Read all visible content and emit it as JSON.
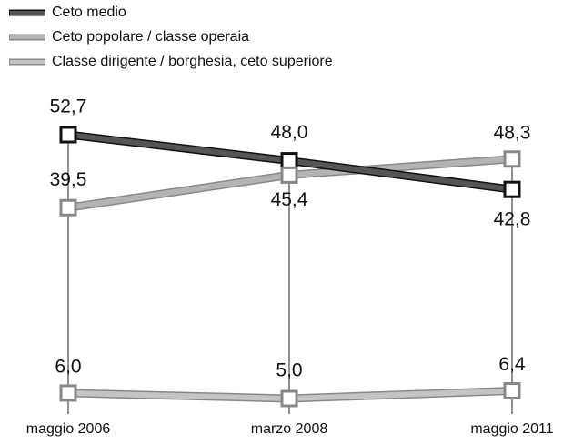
{
  "chart_data": {
    "type": "line",
    "categories": [
      "maggio 2006",
      "marzo 2008",
      "maggio 2011"
    ],
    "series": [
      {
        "name": "Ceto medio",
        "color": "#555555",
        "values": [
          52.7,
          48.0,
          42.8
        ],
        "value_labels": [
          "52,7",
          "48,0",
          "42,8"
        ]
      },
      {
        "name": "Ceto popolare / classe operaia",
        "color": "#b4b4b4",
        "values": [
          39.5,
          45.4,
          48.3
        ],
        "value_labels": [
          "39,5",
          "45,4",
          "48,3"
        ]
      },
      {
        "name": "Classe dirigente / borghesia, ceto superiore",
        "color": "#c4c4c4",
        "values": [
          6.0,
          5.0,
          6.4
        ],
        "value_labels": [
          "6,0",
          "5,0",
          "6,4"
        ]
      }
    ]
  }
}
